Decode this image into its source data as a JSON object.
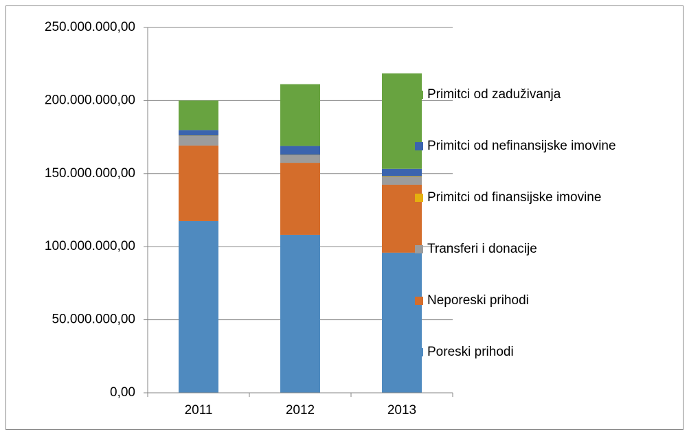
{
  "chart_data": {
    "type": "stacked_bar",
    "categories": [
      "2011",
      "2012",
      "2013"
    ],
    "series": [
      {
        "name": "Poreski prihodi",
        "color": "#4f8abf",
        "values": [
          117500000,
          108100000,
          95900000
        ]
      },
      {
        "name": "Neporeski prihodi",
        "color": "#d46d2b",
        "values": [
          51700000,
          49300000,
          46500000
        ]
      },
      {
        "name": "Transferi i donacije",
        "color": "#9c9c9c",
        "values": [
          6600000,
          5200000,
          5200000
        ]
      },
      {
        "name": "Primitci od finansijske imovine",
        "color": "#e5b00e",
        "values": [
          200000,
          200000,
          500000
        ]
      },
      {
        "name": "Primitci od nefinansijske imovine",
        "color": "#3b64ae",
        "values": [
          3800000,
          6100000,
          5200000
        ]
      },
      {
        "name": "Primitci od zaduživanja",
        "color": "#68a340",
        "values": [
          20200000,
          42300000,
          65300000
        ]
      }
    ],
    "ylim": [
      0,
      250000000
    ],
    "yticks": [
      {
        "value": 0,
        "label": "0,00"
      },
      {
        "value": 50000000,
        "label": "50.000.000,00"
      },
      {
        "value": 100000000,
        "label": "100.000.000,00"
      },
      {
        "value": 150000000,
        "label": "150.000.000,00"
      },
      {
        "value": 200000000,
        "label": "200.000.000,00"
      },
      {
        "value": 250000000,
        "label": "250.000.000,00"
      }
    ],
    "grid": true,
    "legend": "right"
  }
}
